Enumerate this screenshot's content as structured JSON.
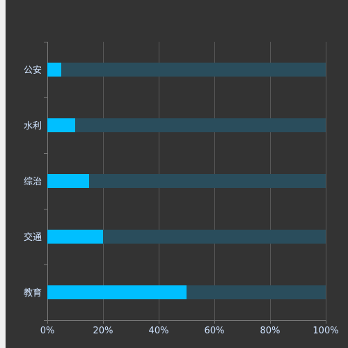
{
  "colors": {
    "background": "#333333",
    "page_edge": "#f0f0f0",
    "bar_fill": "#00bfff",
    "bar_track": "#2a4d5c",
    "grid": "#5a5a5a",
    "axis": "#777777",
    "label": "#cfe3ff"
  },
  "chart_data": {
    "type": "bar",
    "orientation": "horizontal",
    "categories": [
      "公安",
      "水利",
      "综治",
      "交通",
      "教育"
    ],
    "values": [
      5,
      10,
      15,
      20,
      50
    ],
    "background_values": [
      100,
      100,
      100,
      100,
      100
    ],
    "xlim": [
      0,
      100
    ],
    "x_ticks": [
      0,
      20,
      40,
      60,
      80,
      100
    ],
    "x_tick_labels": [
      "0%",
      "20%",
      "40%",
      "60%",
      "80%",
      "100%"
    ],
    "grid": true,
    "legend": "none"
  }
}
